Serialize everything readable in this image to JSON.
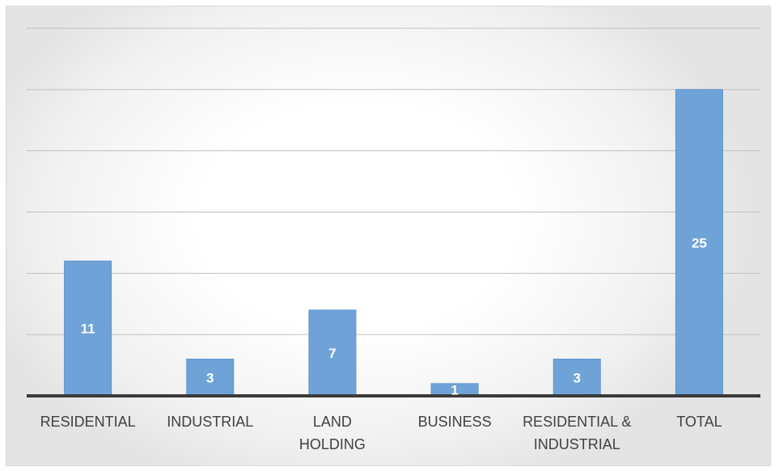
{
  "chart_data": {
    "type": "bar",
    "categories": [
      [
        "RESIDENTIAL"
      ],
      [
        "INDUSTRIAL"
      ],
      [
        "LAND",
        "HOLDING"
      ],
      [
        "BUSINESS"
      ],
      [
        "RESIDENTIAL &",
        "INDUSTRIAL"
      ],
      [
        "TOTAL"
      ]
    ],
    "values": [
      11,
      3,
      7,
      1,
      3,
      25
    ],
    "data_labels": [
      "11",
      "3",
      "7",
      "1",
      "3",
      "25"
    ],
    "ylim": [
      0,
      30
    ],
    "gridline_step": 5,
    "grid": true,
    "title": "",
    "xlabel": "",
    "ylabel": "",
    "legend": "none",
    "colors": {
      "bar_fill": "#6fa3d8",
      "bar_edge": "#5b93cc",
      "label_text": "#ffffff",
      "category_text": "#404040",
      "axis": "#3a3a3a",
      "grid": "#bfbfbf"
    }
  }
}
